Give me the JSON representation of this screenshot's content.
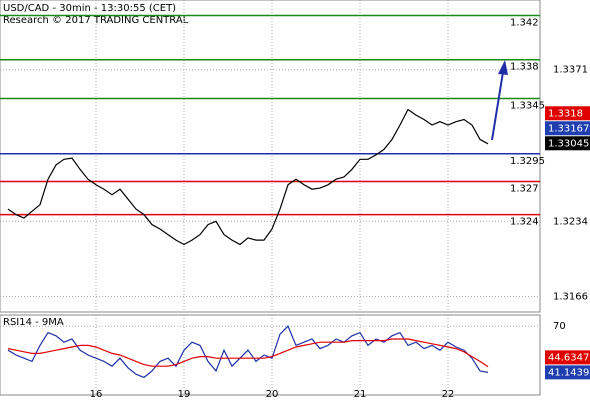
{
  "chart_data": [
    {
      "type": "line",
      "title": "USD/CAD - 30min - 13:30:55 (CET)",
      "subtitle": "Research © 2017 TRADING CENTRAL",
      "x": [
        0,
        1,
        2,
        3,
        4,
        5,
        6,
        7,
        8,
        9,
        10,
        11,
        12,
        13,
        14,
        15,
        16,
        17,
        18,
        19,
        20,
        21,
        22,
        23,
        24,
        25,
        26,
        27,
        28,
        29,
        30,
        31,
        32,
        33,
        34,
        35,
        36,
        37,
        38,
        39,
        40,
        41,
        42,
        43,
        44,
        45,
        46,
        47,
        48,
        49,
        50,
        51,
        52,
        53,
        54,
        55,
        56,
        57,
        58,
        59,
        60
      ],
      "xlim": [
        -1,
        66.5
      ],
      "xticks": [
        {
          "value": 11,
          "label": "16"
        },
        {
          "value": 22,
          "label": "19"
        },
        {
          "value": 33,
          "label": "20"
        },
        {
          "value": 44,
          "label": "21"
        },
        {
          "value": 55,
          "label": "22"
        }
      ],
      "series": [
        {
          "color": "#000000",
          "values": [
            1.3245,
            1.324,
            1.3237,
            1.3243,
            1.3249,
            1.3272,
            1.3285,
            1.329,
            1.3291,
            1.3281,
            1.3272,
            1.3267,
            1.3263,
            1.3258,
            1.3263,
            1.3254,
            1.3245,
            1.324,
            1.3231,
            1.3227,
            1.3222,
            1.3217,
            1.3213,
            1.3217,
            1.3222,
            1.3231,
            1.3234,
            1.3222,
            1.3217,
            1.3213,
            1.3219,
            1.3217,
            1.3217,
            1.3227,
            1.3245,
            1.3267,
            1.3272,
            1.3267,
            1.3263,
            1.3264,
            1.3267,
            1.3272,
            1.3274,
            1.3281,
            1.329,
            1.329,
            1.3294,
            1.3299,
            1.3308,
            1.3321,
            1.3335,
            1.333,
            1.3326,
            1.3321,
            1.3324,
            1.3321,
            1.3324,
            1.3326,
            1.3321,
            1.3308,
            1.3304
          ]
        }
      ],
      "ylim": [
        1.3152,
        1.3434
      ],
      "yticks": [
        1.3371,
        1.3234,
        1.3166
      ],
      "levels": [
        {
          "value": 1.342,
          "color": "#1a8a1a"
        },
        {
          "value": 1.338,
          "color": "#1a8a1a"
        },
        {
          "value": 1.3345,
          "color": "#1a8a1a"
        },
        {
          "value": 1.3295,
          "color": "#1f2fa8"
        },
        {
          "value": 1.327,
          "color": "#e00000"
        },
        {
          "value": 1.324,
          "color": "#e00000"
        }
      ],
      "price_markers": [
        {
          "value": 1.3318,
          "color": "#e00000"
        },
        {
          "value": 1.33167,
          "color": "#1f3fb0"
        },
        {
          "value": 1.33045,
          "color": "#000000"
        }
      ],
      "grid": true
    },
    {
      "type": "line",
      "title": "RSI14 - 9MA",
      "x": [
        0,
        1,
        2,
        3,
        4,
        5,
        6,
        7,
        8,
        9,
        10,
        11,
        12,
        13,
        14,
        15,
        16,
        17,
        18,
        19,
        20,
        21,
        22,
        23,
        24,
        25,
        26,
        27,
        28,
        29,
        30,
        31,
        32,
        33,
        34,
        35,
        36,
        37,
        38,
        39,
        40,
        41,
        42,
        43,
        44,
        45,
        46,
        47,
        48,
        49,
        50,
        51,
        52,
        53,
        54,
        55,
        56,
        57,
        58,
        59,
        60
      ],
      "xlim": [
        -1,
        66.5
      ],
      "series": [
        {
          "color": "#1f2fa8",
          "values": [
            55,
            52,
            50,
            48,
            58,
            66,
            64,
            60,
            62,
            55,
            52,
            50,
            48,
            45,
            50,
            44,
            40,
            38,
            42,
            48,
            50,
            45,
            55,
            60,
            58,
            48,
            42,
            55,
            45,
            50,
            55,
            48,
            52,
            50,
            65,
            70,
            58,
            60,
            62,
            56,
            58,
            62,
            60,
            64,
            66,
            58,
            62,
            60,
            64,
            66,
            58,
            60,
            56,
            58,
            55,
            60,
            57,
            55,
            50,
            42,
            41.1439
          ]
        },
        {
          "color": "#e00000",
          "values": [
            56,
            55,
            54,
            53,
            53,
            54,
            55,
            56,
            57,
            58,
            58,
            57,
            55,
            53,
            52,
            50,
            48,
            46,
            45,
            45,
            45,
            46,
            48,
            50,
            51,
            51,
            50,
            50,
            50,
            50,
            50,
            50,
            50,
            51,
            53,
            55,
            57,
            58,
            59,
            60,
            60,
            60,
            60,
            61,
            61,
            61,
            61,
            61,
            62,
            62,
            62,
            61,
            60,
            59,
            58,
            57,
            56,
            54,
            51,
            48,
            44.6347
          ]
        }
      ],
      "ylim": [
        27,
        77
      ],
      "yticks": [
        70
      ],
      "price_markers": [
        {
          "value": 44.6347,
          "color": "#e00000"
        },
        {
          "value": 41.1439,
          "color": "#1f3fb0"
        }
      ],
      "grid": true
    }
  ]
}
